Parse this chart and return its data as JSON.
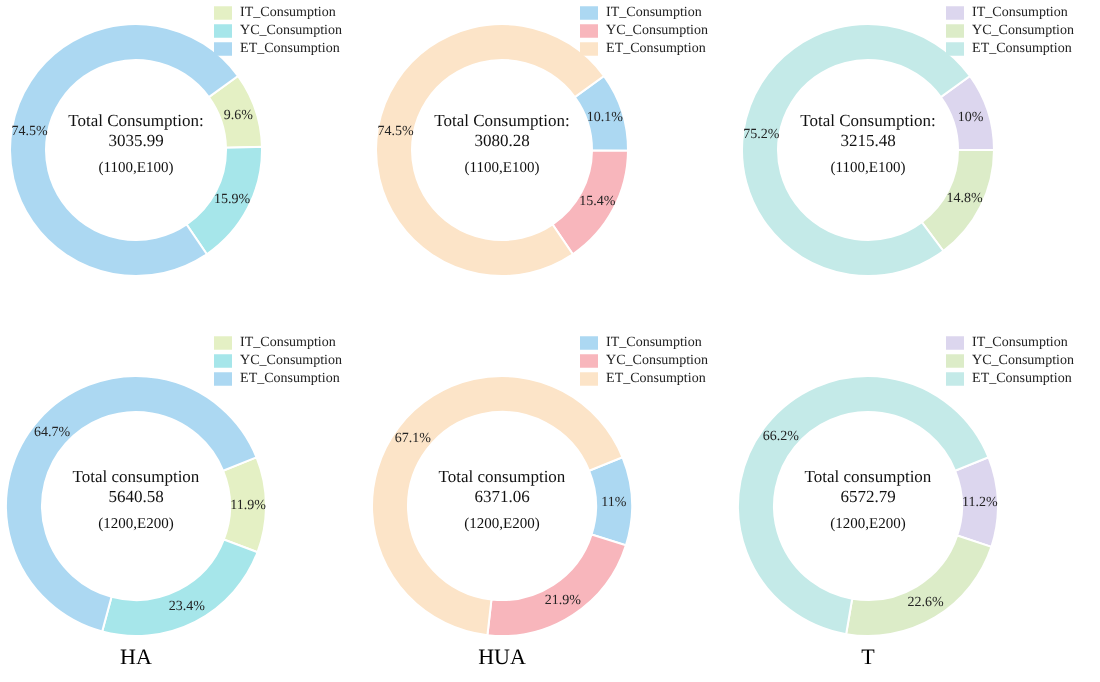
{
  "chart_data": [
    {
      "type": "donut",
      "title": "Total Consumption:",
      "subtitle": "3035.99",
      "annotations": [
        "(1100,E100)"
      ],
      "categories": [
        "IT_Consumption",
        "YC_Consumption",
        "ET_Consumption"
      ],
      "values": [
        9.6,
        15.9,
        74.5
      ],
      "value_labels": [
        "9.6%",
        "15.9%",
        "74.5%"
      ],
      "colors": [
        "#e4f0c4",
        "#a6e6ea",
        "#acd8f2"
      ],
      "legend": "top right"
    },
    {
      "type": "donut",
      "title": "Total Consumption:",
      "subtitle": "3080.28",
      "annotations": [
        "(1100,E100)"
      ],
      "categories": [
        "IT_Consumption",
        "YC_Consumption",
        "ET_Consumption"
      ],
      "values": [
        10.1,
        15.4,
        74.5
      ],
      "value_labels": [
        "10.1%",
        "15.4%",
        "74.5%"
      ],
      "colors": [
        "#acd8f2",
        "#f8b6bc",
        "#fce4c8"
      ],
      "legend": "top right"
    },
    {
      "type": "donut",
      "title": "Total Consumption:",
      "subtitle": "3215.48",
      "annotations": [
        "(1100,E100)"
      ],
      "categories": [
        "IT_Consumption",
        "YC_Consumption",
        "ET_Consumption"
      ],
      "values": [
        10,
        14.8,
        75.2
      ],
      "value_labels": [
        "10%",
        "14.8%",
        "75.2%"
      ],
      "colors": [
        "#dcd6ee",
        "#dcecc8",
        "#c4eae8"
      ],
      "legend": "top right"
    },
    {
      "type": "donut",
      "title": "Total consumption",
      "subtitle": "5640.58",
      "annotations": [
        "(1200,E200)"
      ],
      "xlabel": "HA",
      "categories": [
        "IT_Consumption",
        "YC_Consumption",
        "ET_Consumption"
      ],
      "values": [
        11.9,
        23.4,
        64.7
      ],
      "value_labels": [
        "11.9%",
        "23.4%",
        "64.7%"
      ],
      "colors": [
        "#e4f0c4",
        "#a6e6ea",
        "#acd8f2"
      ],
      "legend": "top right"
    },
    {
      "type": "donut",
      "title": "Total consumption",
      "subtitle": "6371.06",
      "annotations": [
        "(1200,E200)"
      ],
      "xlabel": "HUA",
      "categories": [
        "IT_Consumption",
        "YC_Consumption",
        "ET_Consumption"
      ],
      "values": [
        11,
        21.9,
        67.1
      ],
      "value_labels": [
        "11%",
        "21.9%",
        "67.1%"
      ],
      "colors": [
        "#acd8f2",
        "#f8b6bc",
        "#fce4c8"
      ],
      "legend": "top right"
    },
    {
      "type": "donut",
      "title": "Total consumption",
      "subtitle": "6572.79",
      "annotations": [
        "(1200,E200)"
      ],
      "xlabel": "T",
      "categories": [
        "IT_Consumption",
        "YC_Consumption",
        "ET_Consumption"
      ],
      "values": [
        11.2,
        22.6,
        66.2
      ],
      "value_labels": [
        "11.2%",
        "22.6%",
        "66.2%"
      ],
      "colors": [
        "#dcd6ee",
        "#dcecc8",
        "#c4eae8"
      ],
      "legend": "top right"
    }
  ]
}
